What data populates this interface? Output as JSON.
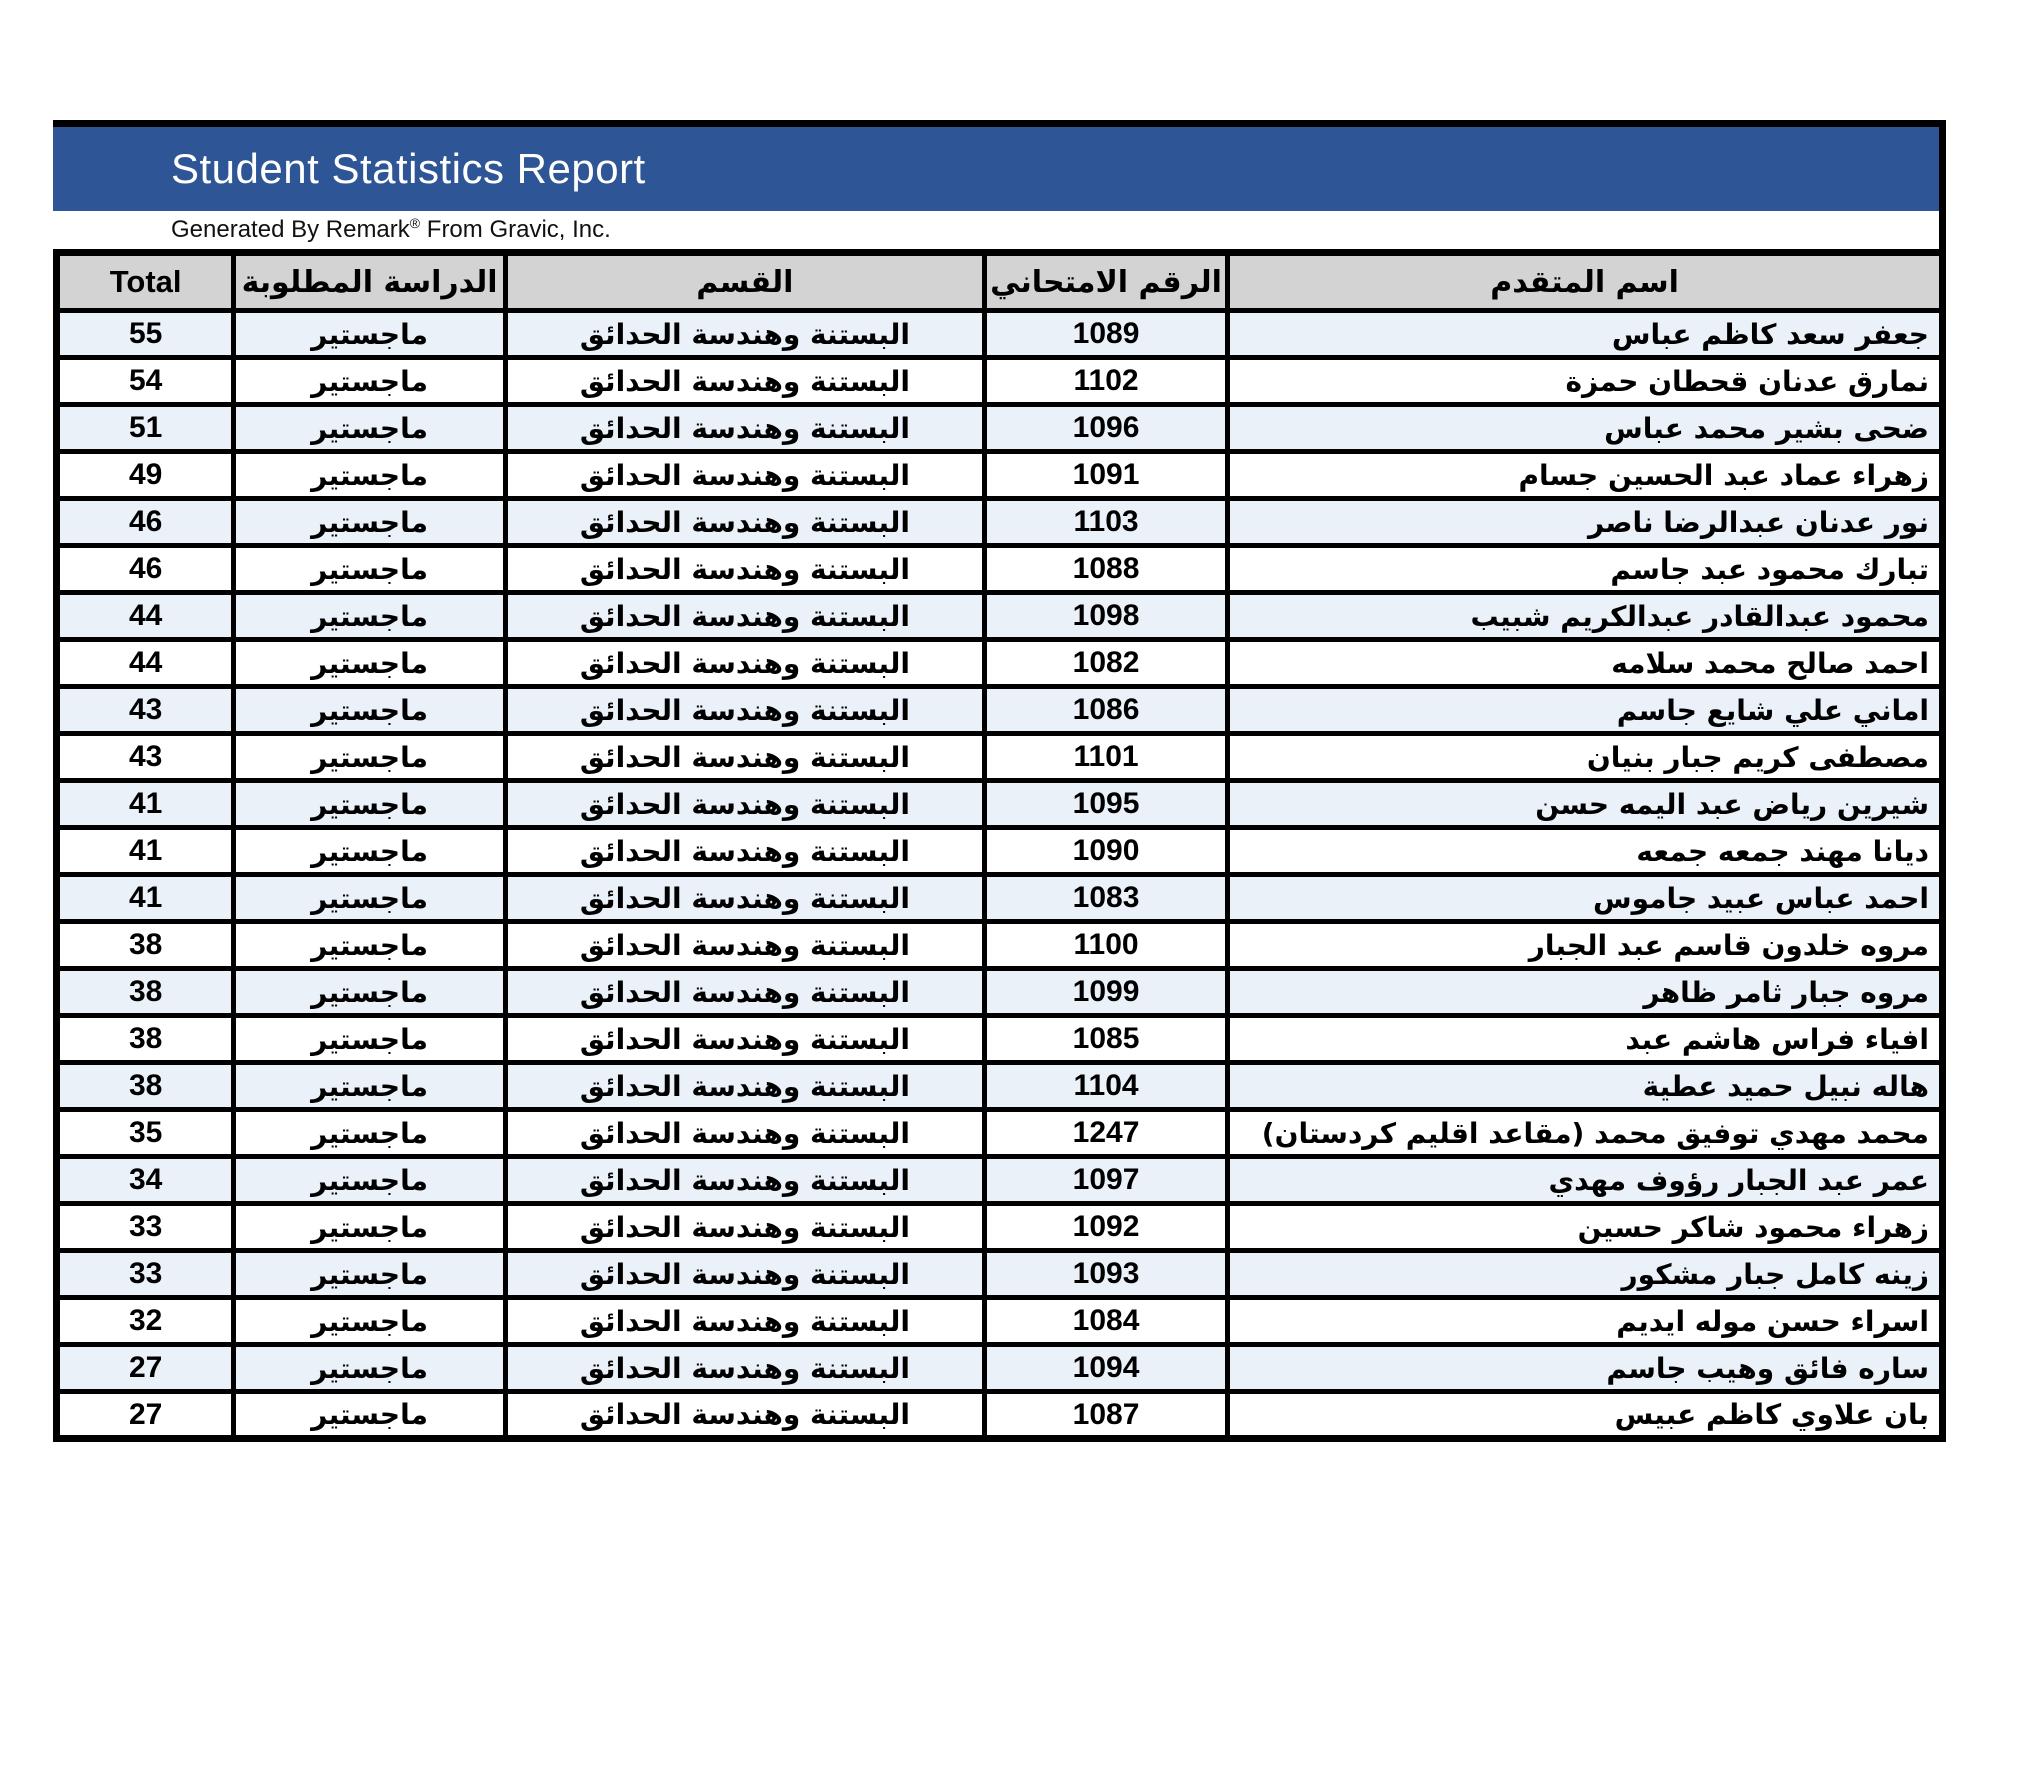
{
  "header": {
    "title": "Student Statistics Report",
    "subtitle": {
      "prefix": "Generated By Remark",
      "reg": "®",
      "suffix": " From Gravic, Inc."
    }
  },
  "colors": {
    "title_bar": "#2E5596",
    "header_row": "#D3D3D3",
    "row_alt": "#EAF1F9",
    "border": "#000000"
  },
  "table": {
    "columns": {
      "total": "Total",
      "study": "الدراسة المطلوبة",
      "department": "القسم",
      "exam_number": "الرقم الامتحاني",
      "applicant_name": "اسم المتقدم"
    },
    "rows": [
      {
        "total": 55,
        "study": "ماجستير",
        "department": "البستنة وهندسة الحدائق",
        "exam_number": "1089",
        "applicant_name": "جعفر سعد كاظم عباس"
      },
      {
        "total": 54,
        "study": "ماجستير",
        "department": "البستنة وهندسة الحدائق",
        "exam_number": "1102",
        "applicant_name": "نمارق  عدنان قحطان  حمزة"
      },
      {
        "total": 51,
        "study": "ماجستير",
        "department": "البستنة وهندسة الحدائق",
        "exam_number": "1096",
        "applicant_name": "ضحى بشير محمد عباس"
      },
      {
        "total": 49,
        "study": "ماجستير",
        "department": "البستنة وهندسة الحدائق",
        "exam_number": "1091",
        "applicant_name": "زهراء عماد  عبد الحسين  جسام"
      },
      {
        "total": 46,
        "study": "ماجستير",
        "department": "البستنة وهندسة الحدائق",
        "exam_number": "1103",
        "applicant_name": "نور عدنان عبدالرضا ناصر"
      },
      {
        "total": 46,
        "study": "ماجستير",
        "department": "البستنة وهندسة الحدائق",
        "exam_number": "1088",
        "applicant_name": "تبارك محمود عبد جاسم"
      },
      {
        "total": 44,
        "study": "ماجستير",
        "department": "البستنة وهندسة الحدائق",
        "exam_number": "1098",
        "applicant_name": "محمود عبدالقادر عبدالكريم شبيب"
      },
      {
        "total": 44,
        "study": "ماجستير",
        "department": "البستنة وهندسة الحدائق",
        "exam_number": "1082",
        "applicant_name": "احمد صالح محمد سلامه"
      },
      {
        "total": 43,
        "study": "ماجستير",
        "department": "البستنة وهندسة الحدائق",
        "exam_number": "1086",
        "applicant_name": "اماني علي شايع جاسم"
      },
      {
        "total": 43,
        "study": "ماجستير",
        "department": "البستنة وهندسة الحدائق",
        "exam_number": "1101",
        "applicant_name": "مصطفى كريم جبار بنيان"
      },
      {
        "total": 41,
        "study": "ماجستير",
        "department": "البستنة وهندسة الحدائق",
        "exam_number": "1095",
        "applicant_name": "شيرين رياض  عبد اليمه  حسن"
      },
      {
        "total": 41,
        "study": "ماجستير",
        "department": "البستنة وهندسة الحدائق",
        "exam_number": "1090",
        "applicant_name": "ديانا مهند جمعه جمعه"
      },
      {
        "total": 41,
        "study": "ماجستير",
        "department": "البستنة وهندسة الحدائق",
        "exam_number": "1083",
        "applicant_name": "احمد عباس عبيد جاموس"
      },
      {
        "total": 38,
        "study": "ماجستير",
        "department": "البستنة وهندسة الحدائق",
        "exam_number": "1100",
        "applicant_name": "مروه خلدون قاسم عبد الجبار"
      },
      {
        "total": 38,
        "study": "ماجستير",
        "department": "البستنة وهندسة الحدائق",
        "exam_number": "1099",
        "applicant_name": "مروه جبار ثامر ظاهر"
      },
      {
        "total": 38,
        "study": "ماجستير",
        "department": "البستنة وهندسة الحدائق",
        "exam_number": "1085",
        "applicant_name": "افياء فراس  هاشم  عبد"
      },
      {
        "total": 38,
        "study": "ماجستير",
        "department": "البستنة وهندسة الحدائق",
        "exam_number": "1104",
        "applicant_name": "هاله نبيل حميد عطية"
      },
      {
        "total": 35,
        "study": "ماجستير",
        "department": "البستنة وهندسة الحدائق",
        "exam_number": "1247",
        "applicant_name": "محمد مهدي توفيق محمد (مقاعد اقليم كردستان)"
      },
      {
        "total": 34,
        "study": "ماجستير",
        "department": "البستنة وهندسة الحدائق",
        "exam_number": "1097",
        "applicant_name": "عمر عبد الجبار رؤوف مهدي"
      },
      {
        "total": 33,
        "study": "ماجستير",
        "department": "البستنة وهندسة الحدائق",
        "exam_number": "1092",
        "applicant_name": "زهراء محمود شاكر حسين"
      },
      {
        "total": 33,
        "study": "ماجستير",
        "department": "البستنة وهندسة الحدائق",
        "exam_number": "1093",
        "applicant_name": "زينه كامل جبار مشكور"
      },
      {
        "total": 32,
        "study": "ماجستير",
        "department": "البستنة وهندسة الحدائق",
        "exam_number": "1084",
        "applicant_name": "اسراء حسن موله ايديم"
      },
      {
        "total": 27,
        "study": "ماجستير",
        "department": "البستنة وهندسة الحدائق",
        "exam_number": "1094",
        "applicant_name": "ساره فائق وهيب جاسم"
      },
      {
        "total": 27,
        "study": "ماجستير",
        "department": "البستنة وهندسة الحدائق",
        "exam_number": "1087",
        "applicant_name": "بان علاوي كاظم عبيس"
      }
    ]
  }
}
